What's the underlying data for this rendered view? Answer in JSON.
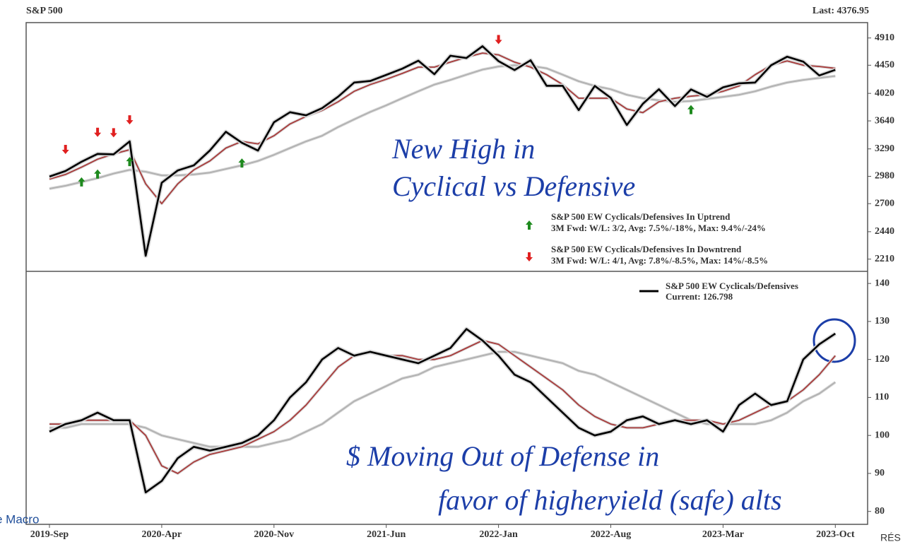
{
  "chart_data": [
    {
      "type": "line",
      "title": "S&P 500",
      "subtitle": "Last: 4376.95",
      "log_scale": true,
      "x": [
        "2019-Sep",
        "2019-Oct",
        "2019-Nov",
        "2019-Dec",
        "2020-Jan",
        "2020-Feb",
        "2020-Mar",
        "2020-Apr",
        "2020-May",
        "2020-Jun",
        "2020-Jul",
        "2020-Aug",
        "2020-Sep",
        "2020-Oct",
        "2020-Nov",
        "2020-Dec",
        "2021-Jan",
        "2021-Feb",
        "2021-Mar",
        "2021-Apr",
        "2021-May",
        "2021-Jun",
        "2021-Jul",
        "2021-Aug",
        "2021-Sep",
        "2021-Oct",
        "2021-Nov",
        "2021-Dec",
        "2022-Jan",
        "2022-Feb",
        "2022-Mar",
        "2022-Apr",
        "2022-May",
        "2022-Jun",
        "2022-Jul",
        "2022-Aug",
        "2022-Sep",
        "2022-Oct",
        "2022-Nov",
        "2022-Dec",
        "2023-Jan",
        "2023-Feb",
        "2023-Mar",
        "2023-Apr",
        "2023-May",
        "2023-Jun",
        "2023-Jul",
        "2023-Aug",
        "2023-Sep",
        "2023-Oct"
      ],
      "series": [
        {
          "color": "#000000",
          "values": [
            2977,
            3038,
            3141,
            3231,
            3226,
            3380,
            2237,
            2912,
            3044,
            3100,
            3271,
            3500,
            3363,
            3270,
            3622,
            3756,
            3714,
            3811,
            3973,
            4181,
            4204,
            4297,
            4395,
            4523,
            4308,
            4605,
            4567,
            4766,
            4516,
            4374,
            4530,
            4132,
            4132,
            3785,
            4130,
            3955,
            3586,
            3872,
            4080,
            3840,
            4077,
            3970,
            4109,
            4169,
            4180,
            4450,
            4589,
            4508,
            4288,
            4377
          ]
        },
        {
          "color": "#a83a3a",
          "values": [
            2950,
            3000,
            3080,
            3170,
            3230,
            3280,
            2900,
            2700,
            2900,
            3050,
            3150,
            3300,
            3380,
            3350,
            3450,
            3600,
            3700,
            3780,
            3900,
            4050,
            4150,
            4230,
            4320,
            4420,
            4420,
            4500,
            4580,
            4650,
            4620,
            4500,
            4420,
            4300,
            4150,
            3950,
            3950,
            3950,
            3800,
            3750,
            3900,
            3950,
            3980,
            4000,
            4050,
            4130,
            4300,
            4450,
            4520,
            4450,
            4430,
            4400
          ]
        },
        {
          "color": "#b0b0b0",
          "values": [
            2850,
            2880,
            2920,
            2960,
            3010,
            3050,
            3030,
            2990,
            2990,
            3000,
            3020,
            3060,
            3100,
            3150,
            3220,
            3300,
            3380,
            3450,
            3560,
            3660,
            3760,
            3850,
            3950,
            4050,
            4150,
            4220,
            4300,
            4380,
            4430,
            4450,
            4440,
            4400,
            4300,
            4200,
            4130,
            4080,
            4000,
            3950,
            3920,
            3900,
            3910,
            3940,
            3970,
            4000,
            4050,
            4120,
            4180,
            4220,
            4250,
            4280
          ]
        }
      ],
      "ylim": [
        2120,
        5190
      ],
      "yticks": [
        2210,
        2440,
        2700,
        2980,
        3290,
        3640,
        4020,
        4450,
        4910
      ],
      "signals": [
        {
          "name": "S&P 500 EW Cyclicals/Defensives In Uptrend",
          "stats": "3M Fwd: W/L: 3/2, Avg: 7.5%/-18%, Max: 9.4%/-24%",
          "color": "#1e8a1e",
          "direction": "up",
          "x": [
            "2019-Nov",
            "2019-Dec",
            "2020-Feb",
            "2020-Sep",
            "2023-Jan"
          ]
        },
        {
          "name": "S&P 500 EW Cyclicals/Defensives In Downtrend",
          "stats": "3M Fwd: W/L: 4/1, Avg: 7.8%/-8.5%, Max: 14%/-8.5%",
          "color": "#e02020",
          "direction": "down",
          "x": [
            "2019-Oct",
            "2019-Dec",
            "2020-Jan",
            "2020-Feb",
            "2022-Jan"
          ]
        }
      ],
      "annotations": [
        "New High in",
        "Cyclical vs Defensive"
      ]
    },
    {
      "type": "line",
      "x": [
        "2019-Sep",
        "2019-Oct",
        "2019-Nov",
        "2019-Dec",
        "2020-Jan",
        "2020-Feb",
        "2020-Mar",
        "2020-Apr",
        "2020-May",
        "2020-Jun",
        "2020-Jul",
        "2020-Aug",
        "2020-Sep",
        "2020-Oct",
        "2020-Nov",
        "2020-Dec",
        "2021-Jan",
        "2021-Feb",
        "2021-Mar",
        "2021-Apr",
        "2021-May",
        "2021-Jun",
        "2021-Jul",
        "2021-Aug",
        "2021-Sep",
        "2021-Oct",
        "2021-Nov",
        "2021-Dec",
        "2022-Jan",
        "2022-Feb",
        "2022-Mar",
        "2022-Apr",
        "2022-May",
        "2022-Jun",
        "2022-Jul",
        "2022-Aug",
        "2022-Sep",
        "2022-Oct",
        "2022-Nov",
        "2022-Dec",
        "2023-Jan",
        "2023-Feb",
        "2023-Mar",
        "2023-Apr",
        "2023-May",
        "2023-Jun",
        "2023-Jul",
        "2023-Aug",
        "2023-Sep",
        "2023-Oct"
      ],
      "xticks": [
        "2019-Sep",
        "2020-Apr",
        "2020-Nov",
        "2021-Jun",
        "2022-Jan",
        "2022-Aug",
        "2023-Mar",
        "2023-Oct"
      ],
      "series": [
        {
          "name": "S&P 500 EW Cyclicals/Defensives",
          "current_label": "Current: 126.798",
          "color": "#000000",
          "values": [
            101,
            103,
            104,
            106,
            104,
            104,
            85,
            88,
            94,
            97,
            96,
            97,
            98,
            100,
            104,
            110,
            114,
            120,
            123,
            121,
            122,
            121,
            120,
            119,
            121,
            123,
            128,
            125,
            121,
            116,
            114,
            110,
            106,
            102,
            100,
            101,
            104,
            105,
            103,
            104,
            103,
            104,
            101,
            108,
            111,
            108,
            109,
            120,
            124,
            126.798
          ]
        },
        {
          "color": "#a83a3a",
          "values": [
            103,
            103,
            104,
            104,
            104,
            104,
            100,
            92,
            90,
            93,
            95,
            96,
            97,
            99,
            101,
            104,
            108,
            113,
            118,
            121,
            122,
            121,
            121,
            120,
            120,
            121,
            123,
            125,
            124,
            121,
            118,
            115,
            112,
            108,
            105,
            103,
            102,
            102,
            103,
            104,
            104,
            104,
            103,
            104,
            106,
            108,
            109,
            112,
            116,
            121
          ]
        },
        {
          "color": "#b0b0b0",
          "values": [
            102,
            102,
            103,
            103,
            103,
            103,
            102,
            100,
            99,
            98,
            97,
            97,
            97,
            97,
            98,
            99,
            101,
            103,
            106,
            109,
            111,
            113,
            115,
            116,
            118,
            119,
            120,
            121,
            122,
            122,
            121,
            120,
            119,
            117,
            116,
            114,
            112,
            110,
            108,
            106,
            104,
            103,
            103,
            103,
            103,
            104,
            106,
            109,
            111,
            114
          ]
        }
      ],
      "ylim": [
        76.6,
        143
      ],
      "yticks": [
        80,
        90,
        100,
        110,
        120,
        130,
        140
      ],
      "annotations": [
        "$  Moving Out of Defense in",
        "favor of higheryield (safe) alts"
      ]
    }
  ],
  "watermarks": [
    "e Macro",
    "RÉS"
  ]
}
